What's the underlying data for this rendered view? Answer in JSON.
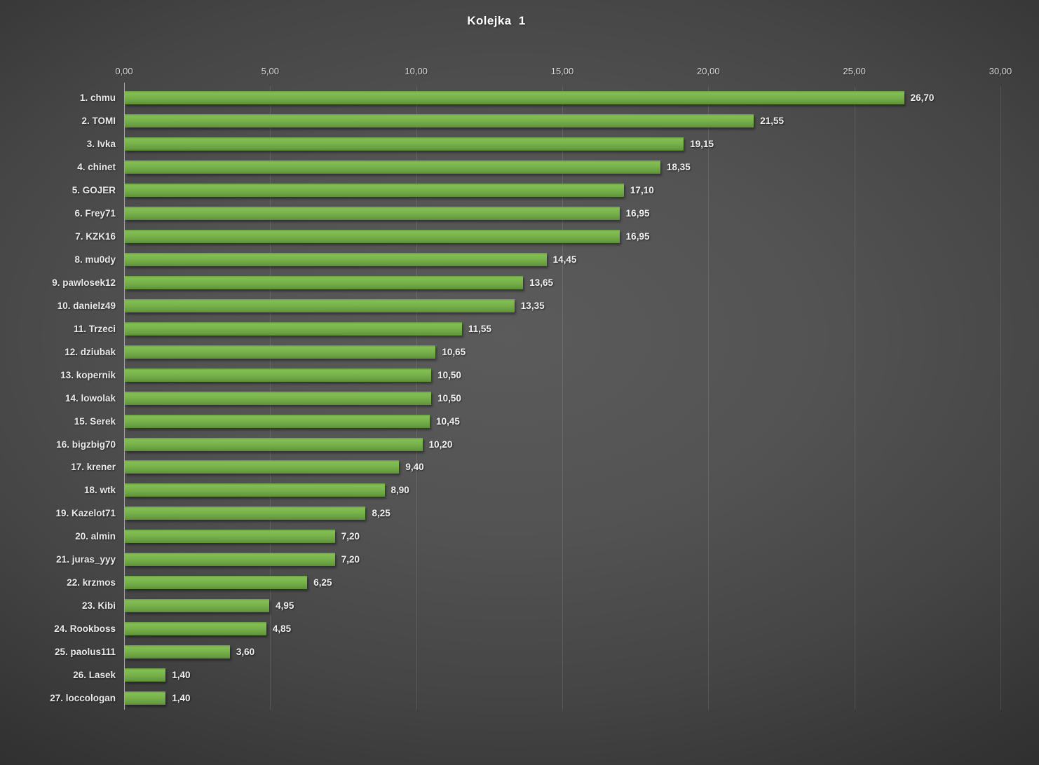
{
  "colors": {
    "bar_green": "#74b14a",
    "bar_green_light": "#83be53",
    "bar_green_dark": "#5c9038",
    "background_center": "#5b5b5b",
    "background_edge": "#252525",
    "axis_line": "#a6a6a6",
    "gridline": "rgba(255,255,255,0.11)",
    "title_text": "#ffffff",
    "label_text": "#eaeaea",
    "tick_text": "#d8d8d8"
  },
  "chart_data": {
    "type": "bar",
    "orientation": "horizontal",
    "title": "Kolejka  1",
    "xlabel": "",
    "ylabel": "",
    "xlim": [
      0,
      30
    ],
    "grid": true,
    "legend": false,
    "x_ticks": [
      {
        "value": 0,
        "label": "0,00"
      },
      {
        "value": 5,
        "label": "5,00"
      },
      {
        "value": 10,
        "label": "10,00"
      },
      {
        "value": 15,
        "label": "15,00"
      },
      {
        "value": 20,
        "label": "20,00"
      },
      {
        "value": 25,
        "label": "25,00"
      },
      {
        "value": 30,
        "label": "30,00"
      }
    ],
    "categories": [
      "1. chmu",
      "2. TOMI",
      "3. Ivka",
      "4. chinet",
      "5. GOJER",
      "6. Frey71",
      "7. KZK16",
      "8. mu0dy",
      "9. pawlosek12",
      "10. danielz49",
      "11. Trzeci",
      "12. dziubak",
      "13. kopernik",
      "14. lowolak",
      "15. Serek",
      "16. bigzbig70",
      "17. krener",
      "18. wtk",
      "19. Kazelot71",
      "20. almin",
      "21. juras_yyy",
      "22. krzmos",
      "23. Kibi",
      "24. Rookboss",
      "25. paolus111",
      "26. Lasek",
      "27. loccologan"
    ],
    "values": [
      26.7,
      21.55,
      19.15,
      18.35,
      17.1,
      16.95,
      16.95,
      14.45,
      13.65,
      13.35,
      11.55,
      10.65,
      10.5,
      10.5,
      10.45,
      10.2,
      9.4,
      8.9,
      8.25,
      7.2,
      7.2,
      6.25,
      4.95,
      4.85,
      3.6,
      1.4,
      1.4
    ],
    "value_labels": [
      "26,70",
      "21,55",
      "19,15",
      "18,35",
      "17,10",
      "16,95",
      "16,95",
      "14,45",
      "13,65",
      "13,35",
      "11,55",
      "10,65",
      "10,50",
      "10,50",
      "10,45",
      "10,20",
      "9,40",
      "8,90",
      "8,25",
      "7,20",
      "7,20",
      "6,25",
      "4,95",
      "4,85",
      "3,60",
      "1,40",
      "1,40"
    ]
  }
}
